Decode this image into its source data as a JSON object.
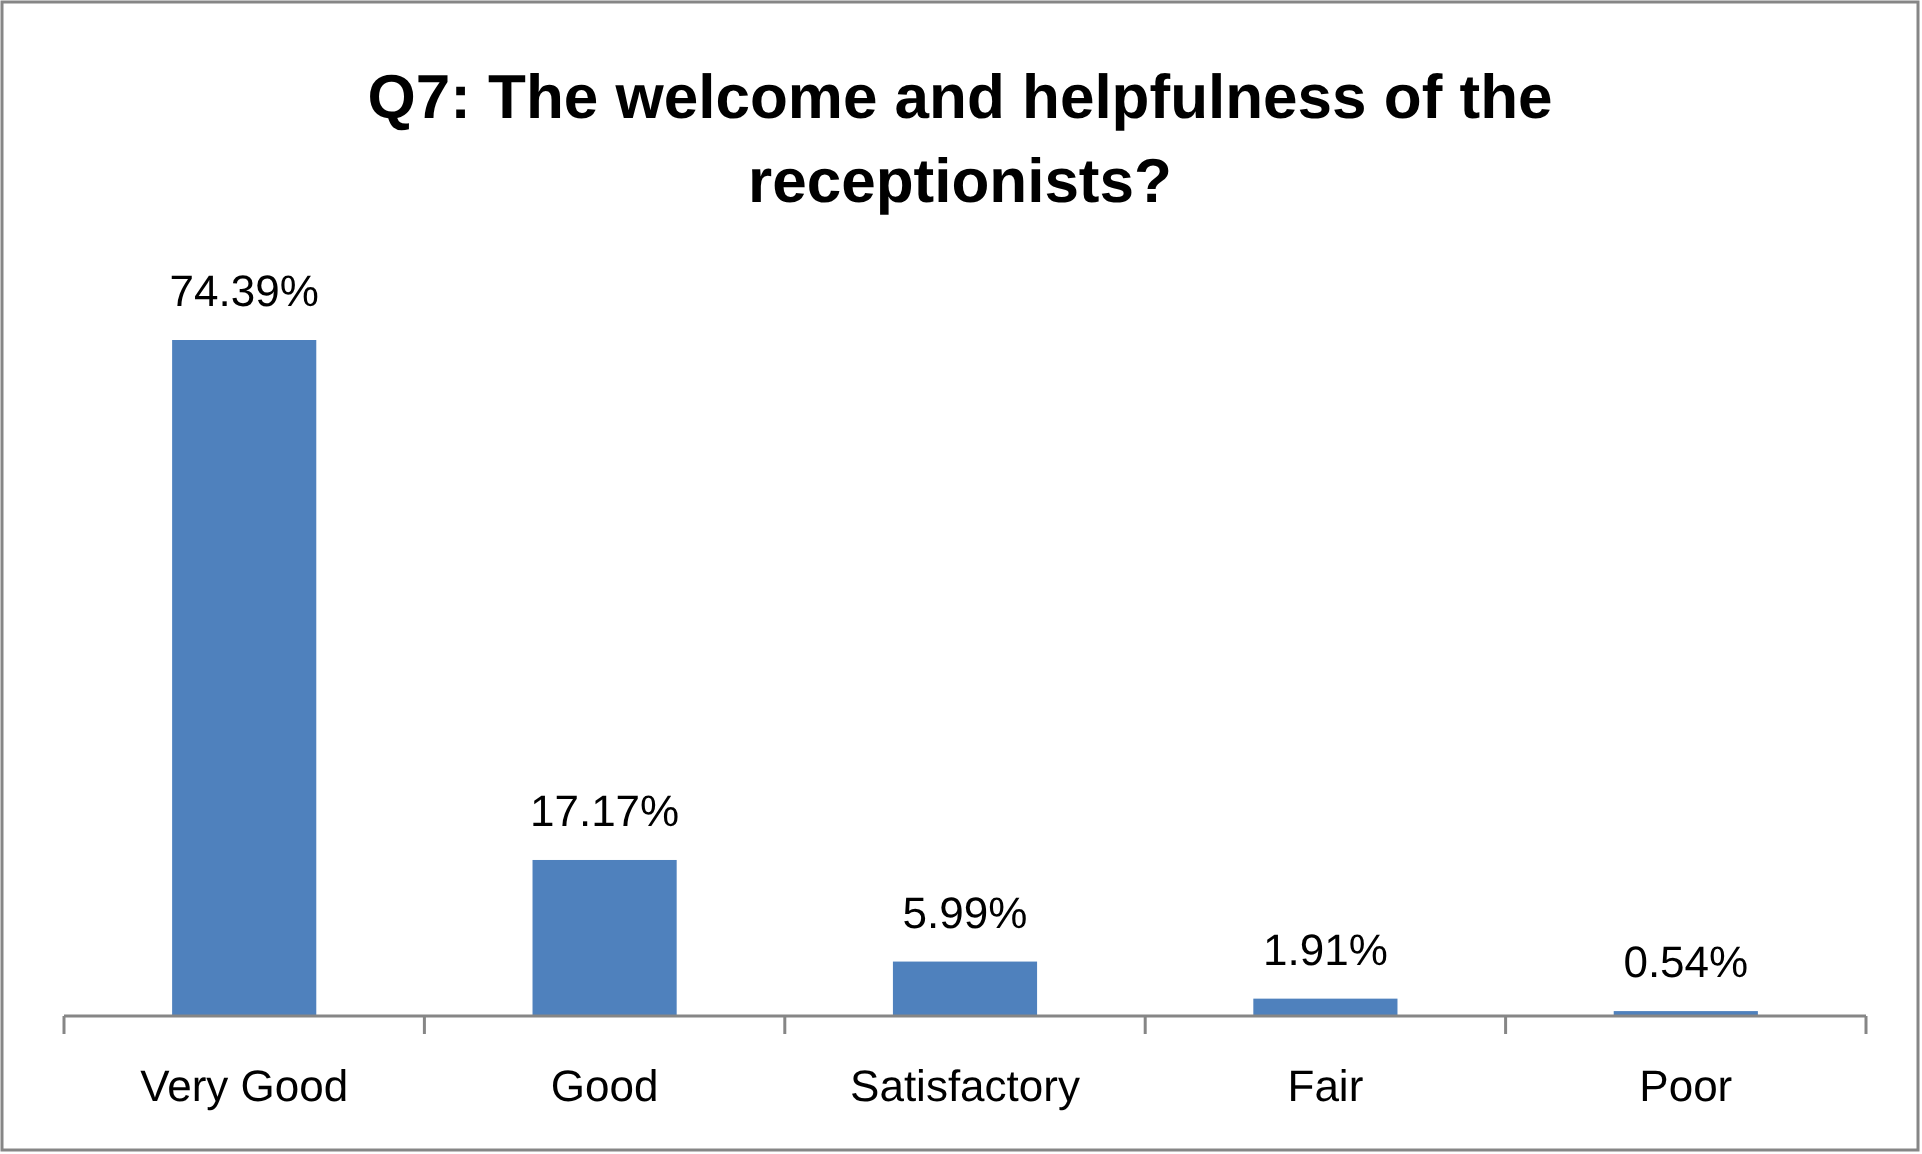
{
  "chart_data": {
    "type": "bar",
    "title": "Q7: The welcome and helpfulness of the receptionists?",
    "categories": [
      "Very Good",
      "Good",
      "Satisfactory",
      "Fair",
      "Poor"
    ],
    "values": [
      74.39,
      17.17,
      5.99,
      1.91,
      0.54
    ],
    "value_labels": [
      "74.39%",
      "17.17%",
      "5.99%",
      "1.91%",
      "0.54%"
    ],
    "color": "#4f81bd"
  }
}
